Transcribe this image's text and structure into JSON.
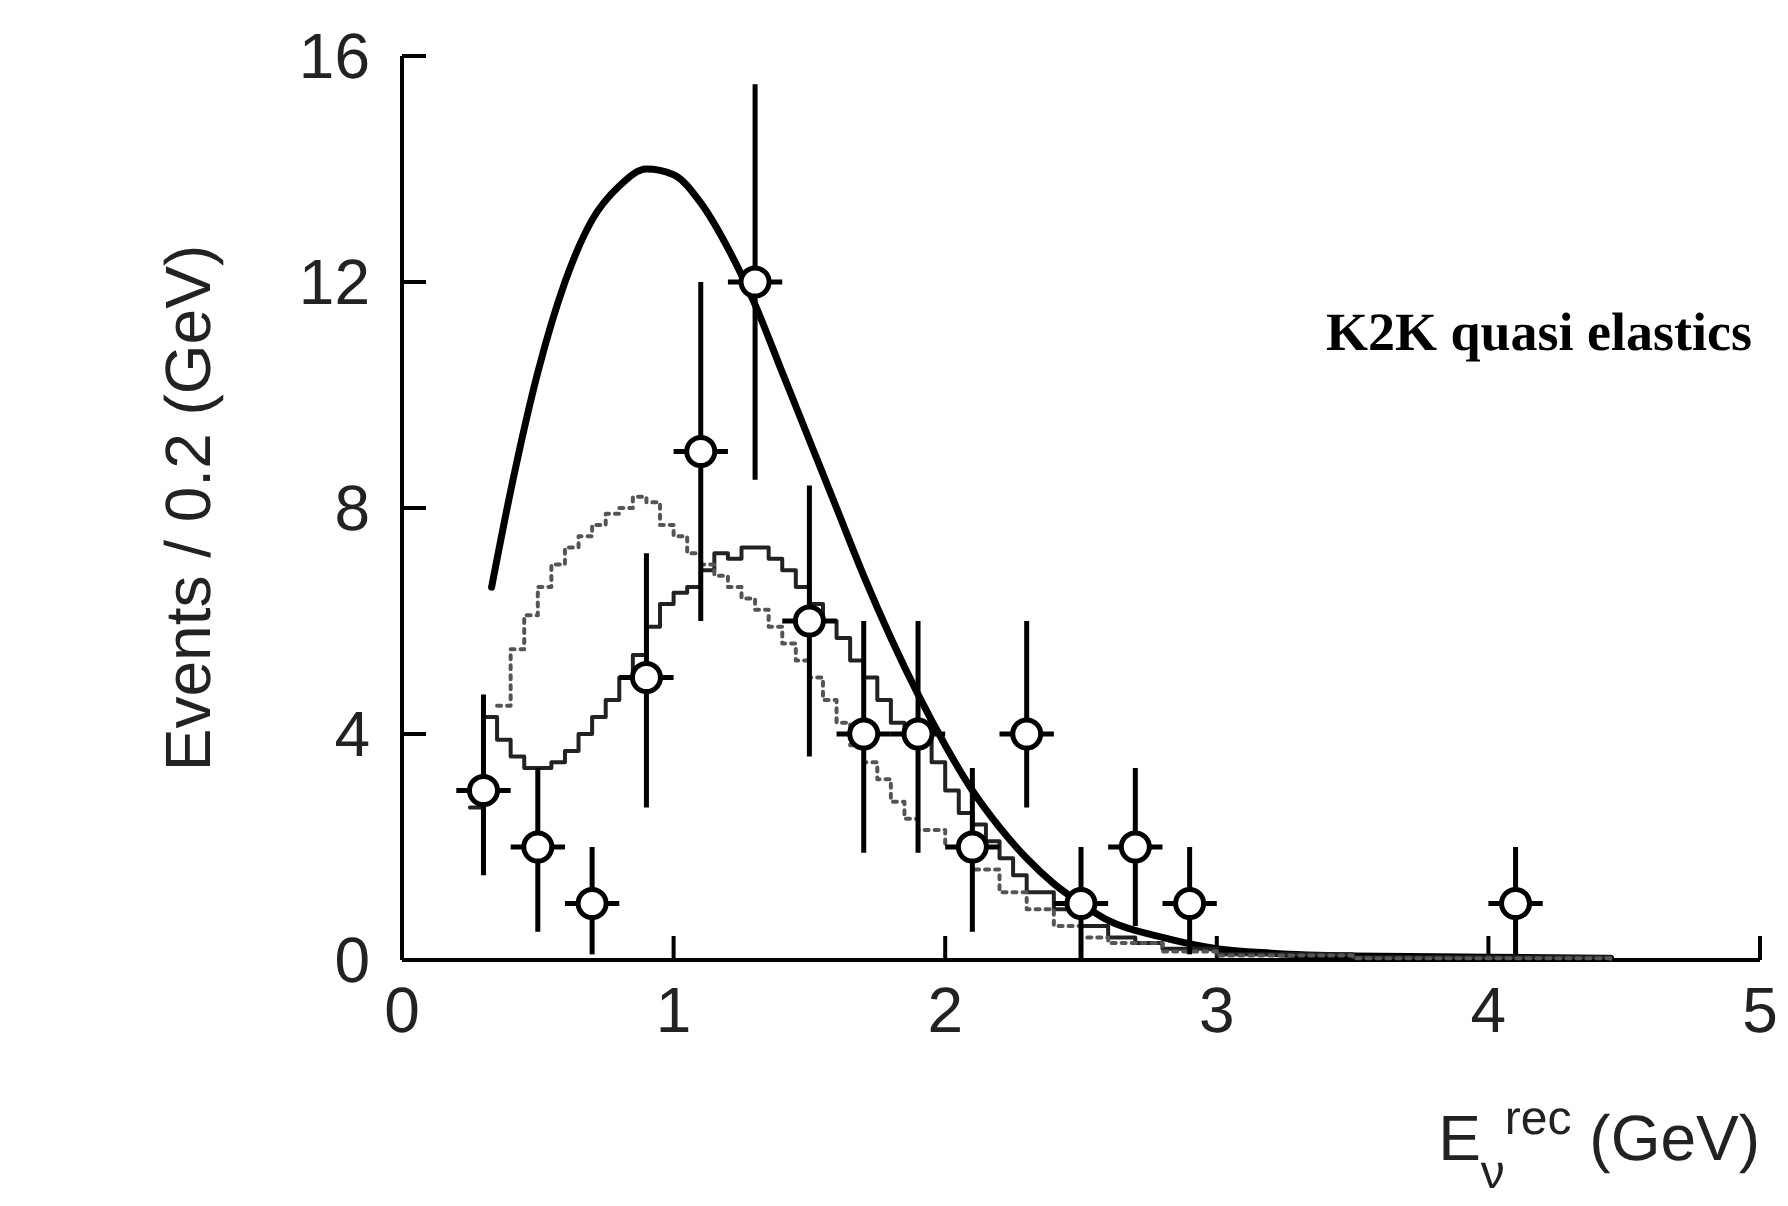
{
  "chart_data": {
    "type": "line",
    "xlabel": "E$_{ν}$$^{rec}$ (GeV)",
    "ylabel": "Events / 0.2 (GeV)",
    "annotations": [
      "K2K quasi elastics"
    ],
    "xlim": [
      0,
      5
    ],
    "ylim": [
      0,
      16
    ],
    "xticks": [
      0,
      1,
      2,
      3,
      4,
      5
    ],
    "yticks": [
      0,
      4,
      8,
      12,
      16
    ],
    "grid": false,
    "series": [
      {
        "color": "#000000",
        "line_style": "solid",
        "x": [
          0.33,
          0.4,
          0.5,
          0.6,
          0.7,
          0.8,
          0.9,
          1.0,
          1.1,
          1.2,
          1.3,
          1.4,
          1.5,
          1.6,
          1.7,
          1.8,
          1.9,
          2.0,
          2.1,
          2.2,
          2.3,
          2.4,
          2.5,
          2.6,
          2.8,
          3.0,
          3.2,
          3.5,
          4.0,
          4.45
        ],
        "values": [
          6.6,
          8.3,
          10.4,
          12.0,
          13.1,
          13.7,
          14.0,
          13.9,
          13.4,
          12.6,
          11.6,
          10.4,
          9.2,
          8.0,
          6.8,
          5.7,
          4.7,
          3.8,
          3.0,
          2.35,
          1.8,
          1.35,
          1.0,
          0.7,
          0.4,
          0.2,
          0.12,
          0.07,
          0.05,
          0.03
        ]
      },
      {
        "type": "step",
        "color": "#222222",
        "line_style": "solid",
        "x": [
          0.25,
          0.3,
          0.35,
          0.4,
          0.45,
          0.5,
          0.55,
          0.6,
          0.65,
          0.7,
          0.75,
          0.8,
          0.85,
          0.9,
          0.95,
          1.0,
          1.05,
          1.1,
          1.15,
          1.2,
          1.25,
          1.3,
          1.35,
          1.4,
          1.45,
          1.5,
          1.55,
          1.6,
          1.65,
          1.7,
          1.75,
          1.8,
          1.85,
          1.9,
          1.95,
          2.0,
          2.05,
          2.1,
          2.15,
          2.2,
          2.25,
          2.3,
          2.4,
          2.5,
          2.6,
          2.7,
          2.8,
          3.0,
          3.5,
          4.45
        ],
        "values": [
          2.7,
          4.3,
          3.9,
          3.6,
          3.4,
          3.4,
          3.5,
          3.7,
          4.0,
          4.3,
          4.6,
          5.0,
          5.4,
          5.9,
          6.3,
          6.5,
          6.6,
          6.9,
          7.2,
          7.1,
          7.3,
          7.3,
          7.1,
          6.9,
          6.6,
          6.3,
          6.0,
          5.7,
          5.3,
          5.0,
          4.6,
          4.2,
          4.0,
          3.9,
          3.5,
          3.0,
          2.6,
          2.4,
          2.1,
          1.8,
          1.5,
          1.2,
          0.9,
          0.6,
          0.4,
          0.3,
          0.2,
          0.1,
          0.05,
          0.0
        ]
      },
      {
        "type": "step",
        "color": "#555555",
        "line_style": "dotted",
        "x": [
          0.35,
          0.4,
          0.45,
          0.5,
          0.55,
          0.6,
          0.65,
          0.7,
          0.75,
          0.8,
          0.85,
          0.9,
          0.95,
          1.0,
          1.05,
          1.1,
          1.15,
          1.2,
          1.25,
          1.3,
          1.35,
          1.4,
          1.45,
          1.5,
          1.55,
          1.6,
          1.65,
          1.7,
          1.75,
          1.8,
          1.85,
          1.9,
          2.0,
          2.1,
          2.2,
          2.3,
          2.4,
          2.5,
          2.6,
          2.8,
          3.0,
          3.5,
          4.45
        ],
        "values": [
          4.5,
          5.5,
          6.1,
          6.6,
          7.0,
          7.3,
          7.5,
          7.7,
          7.9,
          8.0,
          8.2,
          8.1,
          7.7,
          7.5,
          7.2,
          7.0,
          6.8,
          6.6,
          6.4,
          6.2,
          5.9,
          5.6,
          5.3,
          5.0,
          4.6,
          4.2,
          3.8,
          3.5,
          3.2,
          2.8,
          2.5,
          2.3,
          2.0,
          1.6,
          1.2,
          0.9,
          0.6,
          0.4,
          0.3,
          0.15,
          0.08,
          0.03,
          0.0
        ]
      },
      {
        "type": "scatter",
        "color": "#000000",
        "marker": "circle",
        "x": [
          0.3,
          0.5,
          0.7,
          0.9,
          1.1,
          1.3,
          1.5,
          1.7,
          1.9,
          2.1,
          2.3,
          2.5,
          2.7,
          2.9,
          4.1
        ],
        "values": [
          3,
          2,
          1,
          5,
          9,
          12,
          6,
          4,
          4,
          2,
          4,
          1,
          2,
          1,
          1
        ],
        "errors": [
          [
            1.5,
            4.7
          ],
          [
            0.5,
            3.4
          ],
          [
            0.1,
            2.0
          ],
          [
            2.7,
            7.2
          ],
          [
            6.0,
            12.0
          ],
          [
            8.5,
            15.5
          ],
          [
            3.6,
            8.4
          ],
          [
            1.9,
            6.0
          ],
          [
            1.9,
            6.0
          ],
          [
            0.5,
            3.4
          ],
          [
            2.7,
            6.0
          ],
          [
            0,
            2.0
          ],
          [
            0.6,
            3.4
          ],
          [
            0.1,
            2.0
          ],
          [
            0.1,
            2.0
          ]
        ],
        "xerrors": [
          0.1,
          0.1,
          0.1,
          0.1,
          0.1,
          0.1,
          0.1,
          0.1,
          0.1,
          0.1,
          0.1,
          0.1,
          0.1,
          0.1,
          0.1
        ]
      }
    ]
  }
}
